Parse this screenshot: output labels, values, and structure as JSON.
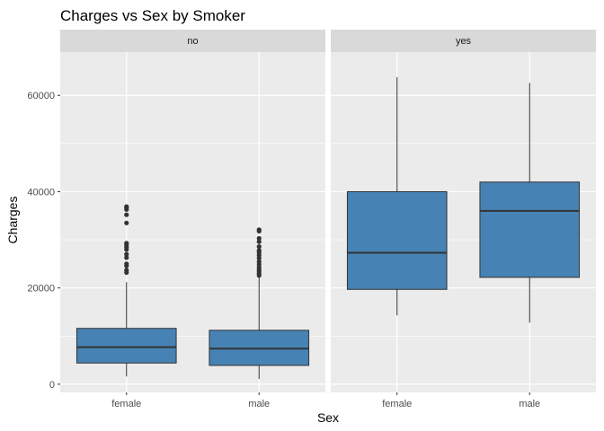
{
  "chart_data": {
    "type": "boxplot",
    "title": "Charges vs Sex by Smoker",
    "xlabel": "Sex",
    "ylabel": "Charges",
    "ylim": [
      -1700,
      69000
    ],
    "yticks": [
      0,
      20000,
      40000,
      60000
    ],
    "ytick_labels": [
      "0",
      "20000",
      "40000",
      "60000"
    ],
    "categories": [
      "female",
      "male"
    ],
    "fill_color": "#4682b4",
    "panel_background": "#ebebeb",
    "strip_background": "#d9d9d9",
    "grid": true,
    "facets": [
      {
        "label": "no",
        "boxes": [
          {
            "category": "female",
            "min": 1600,
            "q1": 4400,
            "median": 7700,
            "q3": 11600,
            "max": 21200,
            "outliers": [
              23200,
              23700,
              24600,
              25000,
              26300,
              27000,
              28000,
              28500,
              29000,
              29300,
              33500,
              35200,
              36300,
              36700,
              36900
            ]
          },
          {
            "category": "male",
            "min": 1100,
            "q1": 3900,
            "median": 7400,
            "q3": 11200,
            "max": 22200,
            "outliers": [
              22600,
              23000,
              23400,
              23800,
              24300,
              24900,
              25500,
              26200,
              26800,
              27400,
              27800,
              28600,
              29600,
              30300,
              31800,
              32100
            ]
          }
        ]
      },
      {
        "label": "yes",
        "boxes": [
          {
            "category": "female",
            "min": 14300,
            "q1": 19700,
            "median": 27300,
            "q3": 40000,
            "max": 63800,
            "outliers": []
          },
          {
            "category": "male",
            "min": 12800,
            "q1": 22200,
            "median": 36000,
            "q3": 42000,
            "max": 62600,
            "outliers": []
          }
        ]
      }
    ]
  }
}
